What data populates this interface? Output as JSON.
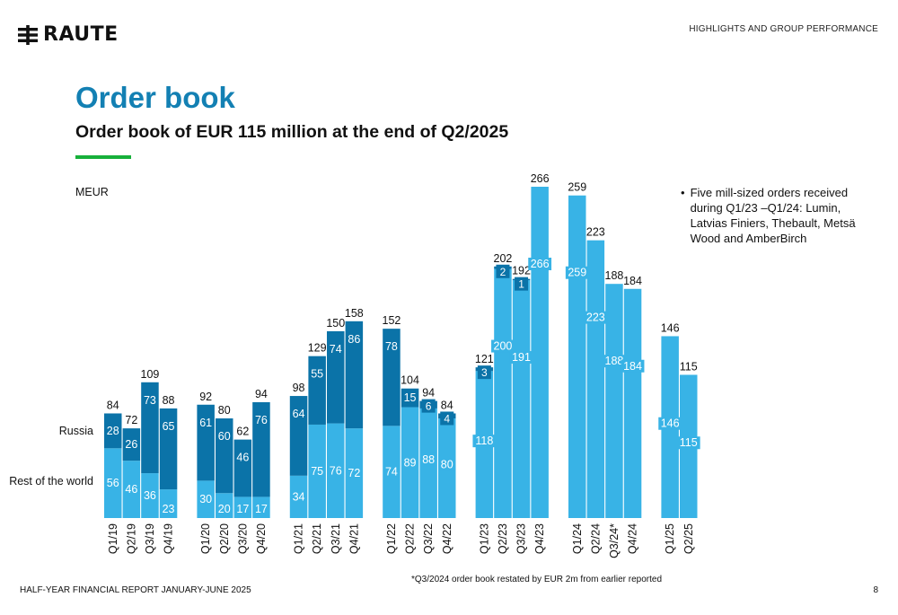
{
  "header": {
    "logo_text": "RAUTE",
    "section_label": "HIGHLIGHTS AND GROUP PERFORMANCE"
  },
  "page": {
    "title": "Order book",
    "subtitle": "Order book of EUR 115 million at the end of Q2/2025",
    "bullet": "Five mill-sized orders received during Q1/23 –Q1/24: Lumin, Latvias Finiers, Thebault, Metsä Wood and AmberBirch"
  },
  "footer": {
    "report": "HALF-YEAR FINANCIAL REPORT JANUARY-JUNE 2025",
    "note": "*Q3/2024 order book restated by EUR 2m from earlier reported",
    "page_number": "8"
  },
  "colors": {
    "brand_blue": "#1380b3",
    "russia": "#0b73a8",
    "rest_of_world": "#38b3e6",
    "accent_green": "#17b03a"
  },
  "chart_data": {
    "type": "bar",
    "stacked": true,
    "unit_label": "MEUR",
    "categories": [
      "Q1/19",
      "Q2/19",
      "Q3/19",
      "Q4/19",
      "Q1/20",
      "Q2/20",
      "Q3/20",
      "Q4/20",
      "Q1/21",
      "Q2/21",
      "Q3/21",
      "Q4/21",
      "Q1/22",
      "Q2/22",
      "Q3/22",
      "Q4/22",
      "Q1/23",
      "Q2/23",
      "Q3/23",
      "Q4/23",
      "Q1/24",
      "Q2/24",
      "Q3/24*",
      "Q4/24",
      "Q1/25",
      "Q2/25"
    ],
    "groups": [
      4,
      4,
      4,
      4,
      4,
      4,
      2
    ],
    "series": [
      {
        "name": "Rest of the world",
        "values": [
          56,
          46,
          36,
          23,
          30,
          20,
          17,
          17,
          34,
          75,
          76,
          72,
          74,
          89,
          88,
          80,
          118,
          200,
          191,
          266,
          259,
          223,
          188,
          184,
          146,
          115
        ]
      },
      {
        "name": "Russia",
        "values": [
          28,
          26,
          73,
          65,
          61,
          60,
          46,
          76,
          64,
          55,
          74,
          86,
          78,
          15,
          6,
          4,
          3,
          2,
          1,
          0,
          0,
          0,
          0,
          0,
          0,
          0
        ]
      }
    ],
    "totals": [
      84,
      72,
      109,
      88,
      92,
      80,
      62,
      94,
      98,
      129,
      150,
      158,
      152,
      104,
      94,
      84,
      121,
      202,
      192,
      266,
      259,
      223,
      188,
      184,
      146,
      115
    ],
    "legend": [
      "Russia",
      "Rest of the world"
    ],
    "ylim": [
      0,
      266
    ]
  }
}
